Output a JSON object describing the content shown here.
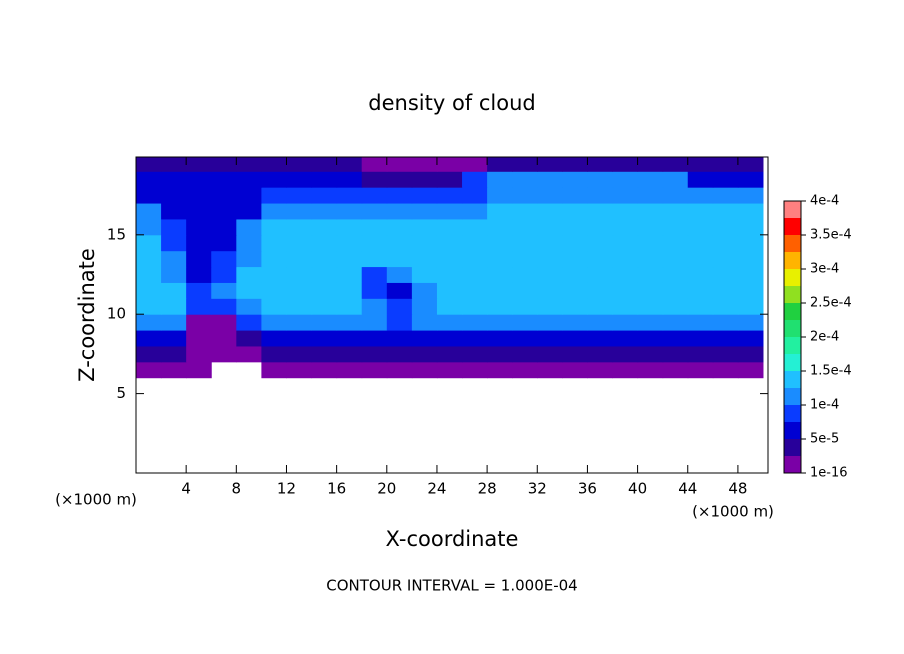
{
  "chart_data": {
    "type": "contour",
    "title": "density of cloud",
    "x_label": "X-coordinate",
    "y_label": "Z-coordinate",
    "x_unit": "(×1000 m)",
    "y_unit": "(×1000 m)",
    "footnote": "CONTOUR INTERVAL = 1.000E-04",
    "xlim": [
      0,
      50.4
    ],
    "ylim": [
      0,
      19.9
    ],
    "xticks": [
      4,
      8,
      12,
      16,
      20,
      24,
      28,
      32,
      36,
      40,
      44,
      48
    ],
    "yticks": [
      5,
      10,
      15
    ],
    "x": [
      1,
      3,
      5,
      7,
      9,
      11,
      13,
      15,
      17,
      19,
      21,
      23,
      25,
      27,
      29,
      31,
      33,
      35,
      37,
      39,
      41,
      43,
      45,
      47,
      49
    ],
    "z": [
      0.5,
      1.5,
      2.5,
      3.5,
      4.5,
      5.5,
      6.5,
      7.5,
      8.5,
      9.5,
      10.5,
      11.5,
      12.5,
      13.5,
      14.5,
      15.5,
      16.5,
      17.5,
      18.5,
      19.5
    ],
    "values": [
      [
        null,
        null,
        null,
        null,
        null,
        null,
        null,
        null,
        null,
        null,
        null,
        null,
        null,
        null,
        null,
        null,
        null,
        null,
        null,
        null,
        null,
        null,
        null,
        null,
        null
      ],
      [
        null,
        null,
        null,
        null,
        null,
        null,
        null,
        null,
        null,
        null,
        null,
        null,
        null,
        null,
        null,
        null,
        null,
        null,
        null,
        null,
        null,
        null,
        null,
        null,
        null
      ],
      [
        null,
        null,
        null,
        null,
        null,
        null,
        null,
        null,
        null,
        null,
        null,
        null,
        null,
        null,
        null,
        null,
        null,
        null,
        null,
        null,
        null,
        null,
        null,
        null,
        null
      ],
      [
        null,
        null,
        null,
        null,
        null,
        null,
        null,
        null,
        null,
        null,
        null,
        null,
        null,
        null,
        null,
        null,
        null,
        null,
        null,
        null,
        null,
        null,
        null,
        null,
        null
      ],
      [
        null,
        null,
        null,
        null,
        null,
        null,
        null,
        null,
        null,
        null,
        null,
        null,
        null,
        null,
        null,
        null,
        null,
        null,
        null,
        null,
        null,
        null,
        null,
        null,
        null
      ],
      [
        null,
        null,
        null,
        null,
        null,
        null,
        null,
        null,
        null,
        null,
        null,
        null,
        null,
        null,
        null,
        null,
        null,
        null,
        null,
        null,
        null,
        null,
        null,
        null,
        null
      ],
      [
        1e-05,
        1e-05,
        1e-05,
        null,
        null,
        1e-05,
        1e-05,
        1e-05,
        1e-05,
        1e-05,
        1e-05,
        1e-05,
        1e-05,
        1e-05,
        1e-05,
        1e-05,
        1e-05,
        1e-05,
        1e-05,
        1e-05,
        1e-05,
        1e-05,
        1e-05,
        1e-05,
        1e-05
      ],
      [
        3e-05,
        3e-05,
        1.5e-05,
        1.5e-05,
        2e-05,
        3e-05,
        3e-05,
        3e-05,
        3e-05,
        3e-05,
        3e-05,
        3e-05,
        3e-05,
        3e-05,
        3e-05,
        3e-05,
        3e-05,
        3e-05,
        3e-05,
        3e-05,
        3e-05,
        3e-05,
        3e-05,
        3e-05,
        3e-05
      ],
      [
        6e-05,
        6e-05,
        1.5e-05,
        1.5e-05,
        3e-05,
        6e-05,
        6e-05,
        6e-05,
        6e-05,
        6e-05,
        6e-05,
        6e-05,
        6e-05,
        6e-05,
        6e-05,
        6e-05,
        6e-05,
        6e-05,
        6e-05,
        6e-05,
        6e-05,
        6e-05,
        6e-05,
        6e-05,
        6e-05
      ],
      [
        0.00012,
        0.00012,
        1.5e-05,
        1.5e-05,
        8e-05,
        0.000105,
        0.000105,
        0.000105,
        0.000105,
        0.000105,
        9e-05,
        0.000105,
        0.000105,
        0.000105,
        0.000105,
        0.000105,
        0.000105,
        0.000105,
        0.000105,
        0.000105,
        0.000105,
        0.000105,
        0.000105,
        0.000105,
        0.000105
      ],
      [
        0.00013,
        0.00013,
        8e-05,
        9e-05,
        0.00011,
        0.00013,
        0.00013,
        0.00013,
        0.00013,
        0.00011,
        8e-05,
        0.00011,
        0.00013,
        0.00013,
        0.00013,
        0.00013,
        0.00013,
        0.00013,
        0.00013,
        0.00013,
        0.00013,
        0.00013,
        0.00013,
        0.00013,
        0.00013
      ],
      [
        0.000135,
        0.000135,
        8e-05,
        0.00011,
        0.000135,
        0.000135,
        0.000135,
        0.000135,
        0.000135,
        9e-05,
        7e-05,
        0.00012,
        0.000135,
        0.000135,
        0.000135,
        0.000135,
        0.000135,
        0.000135,
        0.000135,
        0.000135,
        0.000135,
        0.000135,
        0.000135,
        0.000135,
        0.000135
      ],
      [
        0.00013,
        0.00012,
        7e-05,
        9e-05,
        0.000135,
        0.000135,
        0.000135,
        0.000135,
        0.000135,
        8e-05,
        0.00012,
        0.00014,
        0.00014,
        0.00014,
        0.00014,
        0.00014,
        0.00014,
        0.00014,
        0.00014,
        0.00014,
        0.00014,
        0.00014,
        0.00014,
        0.00014,
        0.00014
      ],
      [
        0.00013,
        0.0001,
        6e-05,
        8e-05,
        0.00012,
        0.00014,
        0.00014,
        0.00014,
        0.00014,
        0.00014,
        0.00013,
        0.00014,
        0.00014,
        0.00014,
        0.00014,
        0.00014,
        0.00014,
        0.00014,
        0.00014,
        0.00014,
        0.00014,
        0.00014,
        0.00014,
        0.00014,
        0.00014
      ],
      [
        0.000125,
        9e-05,
        6e-05,
        7e-05,
        0.00011,
        0.000145,
        0.000145,
        0.000145,
        0.000145,
        0.000145,
        0.000145,
        0.000145,
        0.000145,
        0.000145,
        0.000145,
        0.000145,
        0.000145,
        0.000145,
        0.000145,
        0.000145,
        0.000145,
        0.000145,
        0.000145,
        0.000145,
        0.000145
      ],
      [
        0.00012,
        8e-05,
        5e-05,
        6e-05,
        0.000105,
        0.00014,
        0.00014,
        0.00014,
        0.00014,
        0.00014,
        0.00014,
        0.00014,
        0.00014,
        0.00014,
        0.00014,
        0.00014,
        0.00014,
        0.00014,
        0.00014,
        0.00014,
        0.00014,
        0.00014,
        0.00014,
        0.00014,
        0.00014
      ],
      [
        0.0001,
        7e-05,
        5e-05,
        5e-05,
        7e-05,
        0.00011,
        0.00011,
        0.00011,
        0.00011,
        0.00011,
        0.00011,
        0.00011,
        0.00011,
        0.00011,
        0.00013,
        0.00013,
        0.00013,
        0.00013,
        0.00013,
        0.00013,
        0.00013,
        0.00013,
        0.00013,
        0.00013,
        0.00013
      ],
      [
        5e-05,
        5e-05,
        5e-05,
        5e-05,
        5e-05,
        8e-05,
        8e-05,
        8e-05,
        8e-05,
        8e-05,
        8e-05,
        8e-05,
        8e-05,
        8e-05,
        0.000115,
        0.000115,
        0.000115,
        0.000115,
        0.000115,
        0.000115,
        0.000115,
        0.000115,
        0.000115,
        0.000115,
        0.000105
      ],
      [
        5e-05,
        5e-05,
        5e-05,
        5e-05,
        5e-05,
        5e-05,
        5e-05,
        5e-05,
        5e-05,
        3e-05,
        3e-05,
        3e-05,
        3e-05,
        8e-05,
        0.000102,
        0.000102,
        0.000102,
        0.000102,
        0.000102,
        0.000102,
        0.000102,
        0.000102,
        7e-05,
        7e-05,
        7e-05
      ],
      [
        4e-05,
        4e-05,
        4e-05,
        4e-05,
        4e-05,
        4e-05,
        4e-05,
        4e-05,
        4e-05,
        2e-05,
        2e-05,
        2e-05,
        2e-05,
        2e-05,
        4e-05,
        4e-05,
        4e-05,
        4e-05,
        4e-05,
        4e-05,
        4e-05,
        4e-05,
        4e-05,
        4e-05,
        4e-05
      ]
    ],
    "levels": [
      1e-16,
      2.5e-05,
      5e-05,
      7.5e-05,
      0.0001,
      0.000125,
      0.00015,
      0.000175,
      0.0002,
      0.000225,
      0.00025,
      0.000275,
      0.0003,
      0.000325,
      0.00035,
      0.000375,
      0.0004
    ],
    "colors": [
      "#7a00a6",
      "#28009a",
      "#0000d2",
      "#0a3cff",
      "#1a8cff",
      "#20c0ff",
      "#24f0d4",
      "#22f0a0",
      "#20e070",
      "#20d040",
      "#90e020",
      "#e8f000",
      "#ffb400",
      "#ff6000",
      "#ff0000",
      "#ff8080"
    ],
    "colorbar_ticks": [
      {
        "value": 1e-16,
        "label": "1e-16"
      },
      {
        "value": 5e-05,
        "label": "5e-5"
      },
      {
        "value": 0.0001,
        "label": "1e-4"
      },
      {
        "value": 0.00015,
        "label": "1.5e-4"
      },
      {
        "value": 0.0002,
        "label": "2e-4"
      },
      {
        "value": 0.00025,
        "label": "2.5e-4"
      },
      {
        "value": 0.0003,
        "label": "3e-4"
      },
      {
        "value": 0.00035,
        "label": "3.5e-4"
      },
      {
        "value": 0.0004,
        "label": "4e-4"
      }
    ]
  }
}
